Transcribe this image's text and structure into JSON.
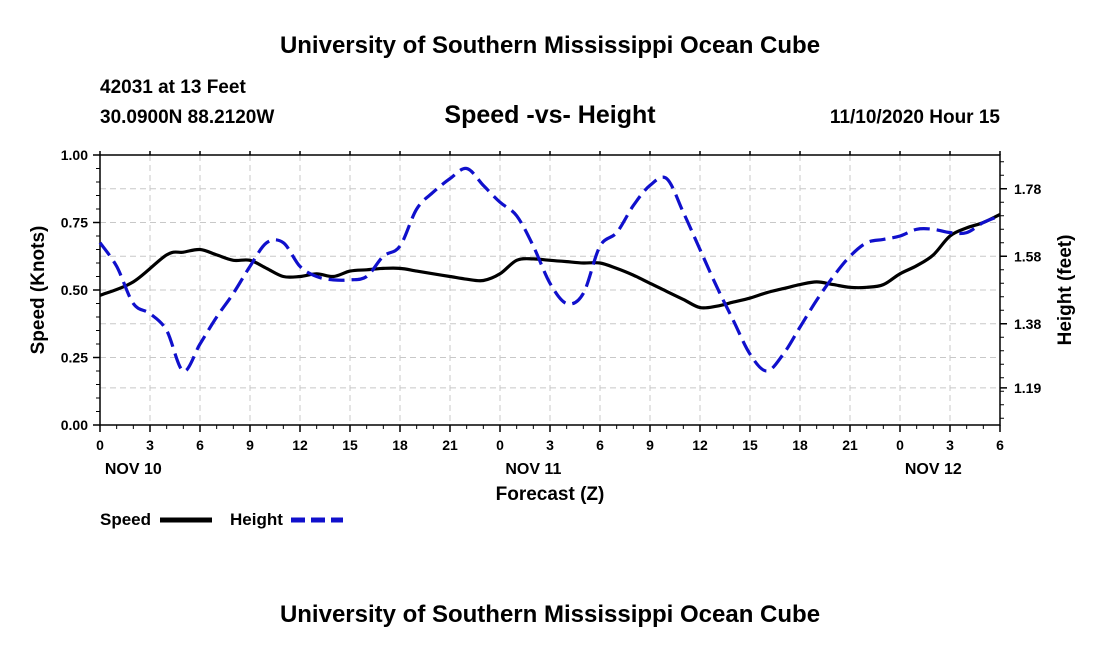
{
  "header_title": "University of Southern Mississippi Ocean Cube",
  "footer_title": "University of Southern Mississippi Ocean Cube",
  "station": {
    "id_line": "42031 at 13 Feet",
    "coords": "30.0900N 88.2120W",
    "datetime": "11/10/2020 Hour 15"
  },
  "legend": {
    "speed_label": "Speed",
    "height_label": "Height"
  },
  "colors": {
    "speed": "#000000",
    "height": "#1010cc",
    "grid": "#c8c8c8"
  },
  "chart_data": {
    "type": "line",
    "title": "Speed -vs- Height",
    "xlabel": "Forecast (Z)",
    "ylabel_left": "Speed (Knots)",
    "ylabel_right": "Height (feet)",
    "x_unit": "forecast hours from NOV 10 00Z",
    "xlim": [
      0,
      54
    ],
    "ylim_left": [
      0,
      1
    ],
    "ylim_right": [
      1.08,
      1.88
    ],
    "x_ticks": [
      0,
      3,
      6,
      9,
      12,
      15,
      18,
      21,
      24,
      27,
      30,
      33,
      36,
      39,
      42,
      45,
      48,
      51,
      54
    ],
    "x_tick_labels": [
      "0",
      "3",
      "6",
      "9",
      "12",
      "15",
      "18",
      "21",
      "0",
      "3",
      "6",
      "9",
      "12",
      "15",
      "18",
      "21",
      "0",
      "3",
      "6"
    ],
    "date_labels": [
      {
        "x": 2,
        "label": "NOV 10"
      },
      {
        "x": 26,
        "label": "NOV 11"
      },
      {
        "x": 50,
        "label": "NOV 12"
      }
    ],
    "y_left_ticks": [
      0,
      0.25,
      0.5,
      0.75,
      1
    ],
    "y_left_tick_labels": [
      "0.00",
      "0.25",
      "0.50",
      "0.75",
      "1.00"
    ],
    "y_right_ticks": [
      1.19,
      1.38,
      1.58,
      1.78
    ],
    "y_right_tick_labels": [
      "1.19",
      "1.38",
      "1.58",
      "1.78"
    ],
    "grid": true,
    "series": [
      {
        "name": "Speed",
        "axis": "left",
        "style": "solid",
        "x": [
          0,
          2,
          4,
          5,
          6,
          7,
          8,
          9,
          10,
          11,
          12,
          13,
          14,
          15,
          16,
          17,
          18,
          19,
          20,
          21,
          22,
          23,
          24,
          25,
          26,
          27,
          28,
          29,
          30,
          31,
          32,
          33,
          34,
          35,
          36,
          37,
          38,
          39,
          40,
          41,
          42,
          43,
          44,
          45,
          46,
          47,
          48,
          49,
          50,
          51,
          52,
          53,
          54
        ],
        "values": [
          0.48,
          0.53,
          0.63,
          0.64,
          0.65,
          0.63,
          0.61,
          0.61,
          0.58,
          0.55,
          0.55,
          0.56,
          0.55,
          0.57,
          0.575,
          0.58,
          0.58,
          0.57,
          0.56,
          0.55,
          0.54,
          0.535,
          0.56,
          0.61,
          0.615,
          0.61,
          0.605,
          0.6,
          0.6,
          0.58,
          0.555,
          0.525,
          0.495,
          0.465,
          0.435,
          0.44,
          0.455,
          0.47,
          0.49,
          0.505,
          0.52,
          0.53,
          0.52,
          0.51,
          0.51,
          0.52,
          0.56,
          0.59,
          0.63,
          0.7,
          0.73,
          0.75,
          0.78
        ]
      },
      {
        "name": "Height",
        "axis": "right",
        "style": "dashed",
        "x": [
          0,
          1,
          2,
          3,
          4,
          5,
          6,
          7,
          8,
          9,
          10,
          11,
          12,
          13,
          14,
          15,
          16,
          17,
          18,
          19,
          20,
          21,
          22,
          23,
          24,
          25,
          26,
          27,
          28,
          29,
          30,
          31,
          32,
          33,
          34,
          35,
          36,
          37,
          38,
          39,
          40,
          41,
          42,
          43,
          44,
          45,
          46,
          47,
          48,
          49,
          50,
          51,
          52,
          53,
          54
        ],
        "values": [
          1.62,
          1.55,
          1.44,
          1.41,
          1.36,
          1.24,
          1.32,
          1.4,
          1.47,
          1.55,
          1.62,
          1.62,
          1.55,
          1.52,
          1.51,
          1.51,
          1.52,
          1.58,
          1.61,
          1.72,
          1.77,
          1.81,
          1.84,
          1.79,
          1.74,
          1.7,
          1.61,
          1.5,
          1.44,
          1.47,
          1.61,
          1.65,
          1.73,
          1.79,
          1.81,
          1.71,
          1.6,
          1.49,
          1.39,
          1.29,
          1.24,
          1.29,
          1.37,
          1.45,
          1.52,
          1.58,
          1.62,
          1.63,
          1.64,
          1.66,
          1.66,
          1.65,
          1.65,
          1.68,
          1.7
        ]
      }
    ]
  }
}
